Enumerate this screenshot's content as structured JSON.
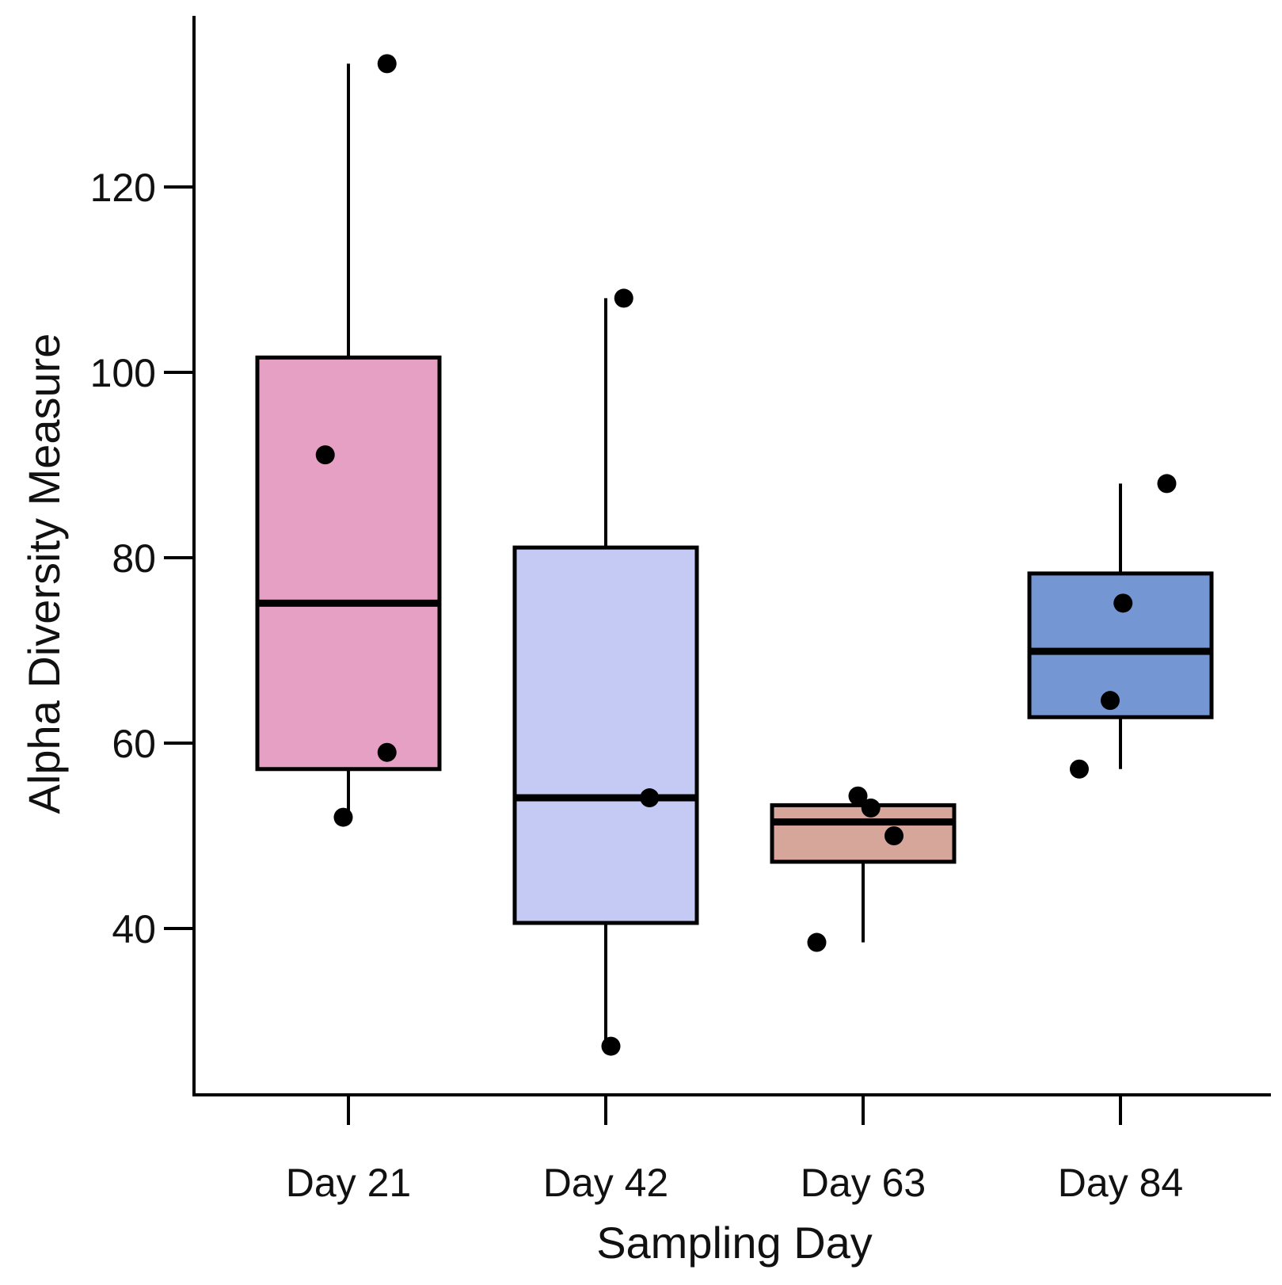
{
  "chart_data": {
    "type": "box",
    "xlabel": "Sampling Day",
    "ylabel": "Alpha Diversity Measure",
    "ylim": [
      22,
      138
    ],
    "y_ticks": [
      40,
      60,
      80,
      100,
      120
    ],
    "grid": false,
    "legend": "none",
    "categories": [
      "Day 21",
      "Day 42",
      "Day 63",
      "Day 84"
    ],
    "boxes": [
      {
        "category": "Day 21",
        "color": "#e6a0c3",
        "whisker_low": 52,
        "q1": 57.2,
        "median": 75.1,
        "q3": 101.6,
        "whisker_high": 133.3
      },
      {
        "category": "Day 42",
        "color": "#c5caf5",
        "whisker_low": 27.3,
        "q1": 40.6,
        "median": 54.1,
        "q3": 81.1,
        "whisker_high": 108
      },
      {
        "category": "Day 63",
        "color": "#d6a69b",
        "whisker_low": 38.5,
        "q1": 47.2,
        "median": 51.5,
        "q3": 53.3,
        "whisker_high": 54.3
      },
      {
        "category": "Day 84",
        "color": "#7496d3",
        "whisker_low": 57.2,
        "q1": 62.8,
        "median": 69.9,
        "q3": 78.3,
        "whisker_high": 88
      }
    ],
    "points": [
      {
        "category": "Day 21",
        "y": 133.3,
        "jitter": 0.15
      },
      {
        "category": "Day 21",
        "y": 91.1,
        "jitter": -0.09
      },
      {
        "category": "Day 21",
        "y": 59,
        "jitter": 0.15
      },
      {
        "category": "Day 21",
        "y": 52,
        "jitter": -0.02
      },
      {
        "category": "Day 42",
        "y": 108,
        "jitter": 0.07
      },
      {
        "category": "Day 42",
        "y": 54.1,
        "jitter": 0.17
      },
      {
        "category": "Day 42",
        "y": 27.3,
        "jitter": 0.02
      },
      {
        "category": "Day 63",
        "y": 54.3,
        "jitter": -0.02
      },
      {
        "category": "Day 63",
        "y": 53,
        "jitter": 0.03
      },
      {
        "category": "Day 63",
        "y": 50,
        "jitter": 0.12
      },
      {
        "category": "Day 63",
        "y": 38.5,
        "jitter": -0.18
      },
      {
        "category": "Day 84",
        "y": 88,
        "jitter": 0.18
      },
      {
        "category": "Day 84",
        "y": 75.1,
        "jitter": 0.01
      },
      {
        "category": "Day 84",
        "y": 64.6,
        "jitter": -0.04
      },
      {
        "category": "Day 84",
        "y": 57.2,
        "jitter": -0.16
      }
    ]
  }
}
